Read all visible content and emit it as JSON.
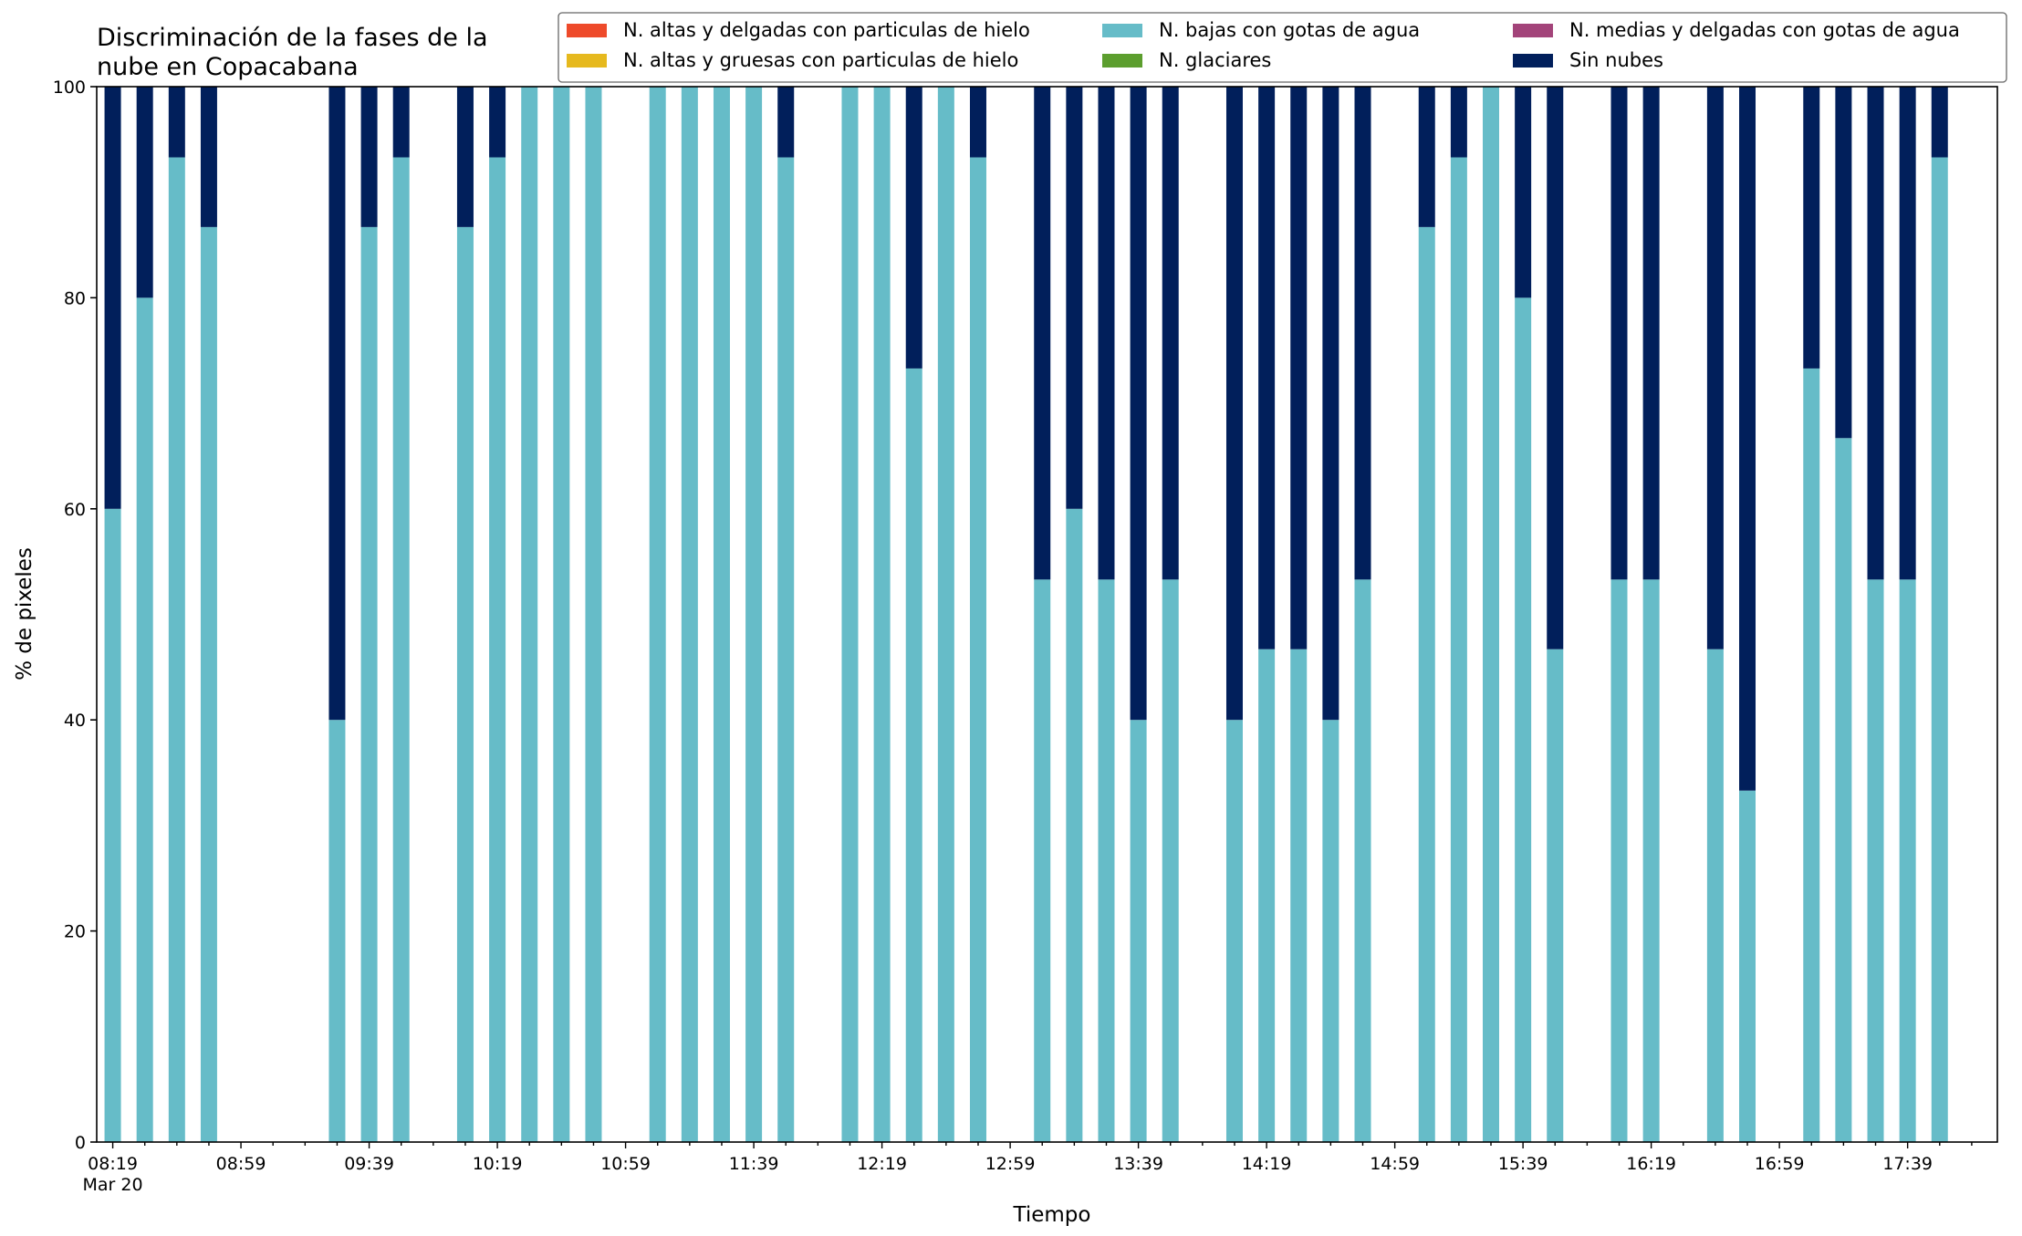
{
  "chart_data": {
    "type": "bar",
    "stacked": true,
    "title": "Discriminación de la fases de la\nnube en Copacabana",
    "xlabel": "Tiempo",
    "ylabel": "% de pixeles",
    "ylim": [
      0,
      100
    ],
    "yticks": [
      0,
      20,
      40,
      60,
      80,
      100
    ],
    "xlim": [
      "08:14",
      "18:07"
    ],
    "date_label": "Mar 20",
    "xtick_labels": [
      "08:19",
      "08:59",
      "09:39",
      "10:19",
      "10:59",
      "11:39",
      "12:19",
      "12:59",
      "13:39",
      "14:19",
      "14:59",
      "15:39",
      "16:19",
      "16:59",
      "17:39"
    ],
    "grid": false,
    "legend_position": "top-right",
    "legend": [
      {
        "name": "N. altas y delgadas con particulas de hielo",
        "color": "#ee4a2a"
      },
      {
        "name": "N. altas y gruesas con particulas de hielo",
        "color": "#e6b91e"
      },
      {
        "name": "N. bajas con gotas de agua",
        "color": "#66bcc8"
      },
      {
        "name": "N. glaciares",
        "color": "#5c9e2e"
      },
      {
        "name": "N. medias y delgadas con gotas de agua",
        "color": "#a3447a"
      },
      {
        "name": "Sin nubes",
        "color": "#011f5b"
      }
    ],
    "x": [
      "08:19",
      "08:29",
      "08:39",
      "08:49",
      "09:29",
      "09:39",
      "09:49",
      "10:09",
      "10:19",
      "10:29",
      "10:39",
      "10:49",
      "11:09",
      "11:19",
      "11:29",
      "11:39",
      "11:49",
      "12:09",
      "12:19",
      "12:29",
      "12:39",
      "12:49",
      "13:09",
      "13:19",
      "13:29",
      "13:39",
      "13:49",
      "14:09",
      "14:19",
      "14:29",
      "14:39",
      "14:49",
      "15:09",
      "15:19",
      "15:29",
      "15:39",
      "15:49",
      "16:09",
      "16:19",
      "16:39",
      "16:49",
      "17:09",
      "17:19",
      "17:29",
      "17:39",
      "17:49"
    ],
    "series": [
      {
        "name": "N. bajas con gotas de agua",
        "color": "#66bcc8",
        "values": [
          60,
          80,
          93.3,
          86.7,
          40,
          86.7,
          93.3,
          86.7,
          93.3,
          100,
          100,
          100,
          100,
          100,
          100,
          100,
          93.3,
          100,
          100,
          73.3,
          100,
          93.3,
          53.3,
          60,
          53.3,
          40,
          53.3,
          40,
          46.7,
          46.7,
          40,
          53.3,
          86.7,
          93.3,
          100,
          80,
          46.7,
          53.3,
          53.3,
          46.7,
          33.3,
          73.3,
          66.7,
          53.3,
          53.3,
          93.3
        ]
      },
      {
        "name": "Sin nubes",
        "color": "#011f5b",
        "values": [
          40,
          20,
          6.7,
          13.3,
          60,
          13.3,
          6.7,
          13.3,
          6.7,
          0,
          0,
          0,
          0,
          0,
          0,
          0,
          6.7,
          0,
          0,
          26.7,
          0,
          6.7,
          46.7,
          40,
          46.7,
          60,
          46.7,
          60,
          53.3,
          53.3,
          60,
          46.7,
          13.3,
          6.7,
          0,
          20,
          53.3,
          46.7,
          46.7,
          53.3,
          66.7,
          26.7,
          33.3,
          46.7,
          46.7,
          6.7
        ]
      }
    ]
  }
}
